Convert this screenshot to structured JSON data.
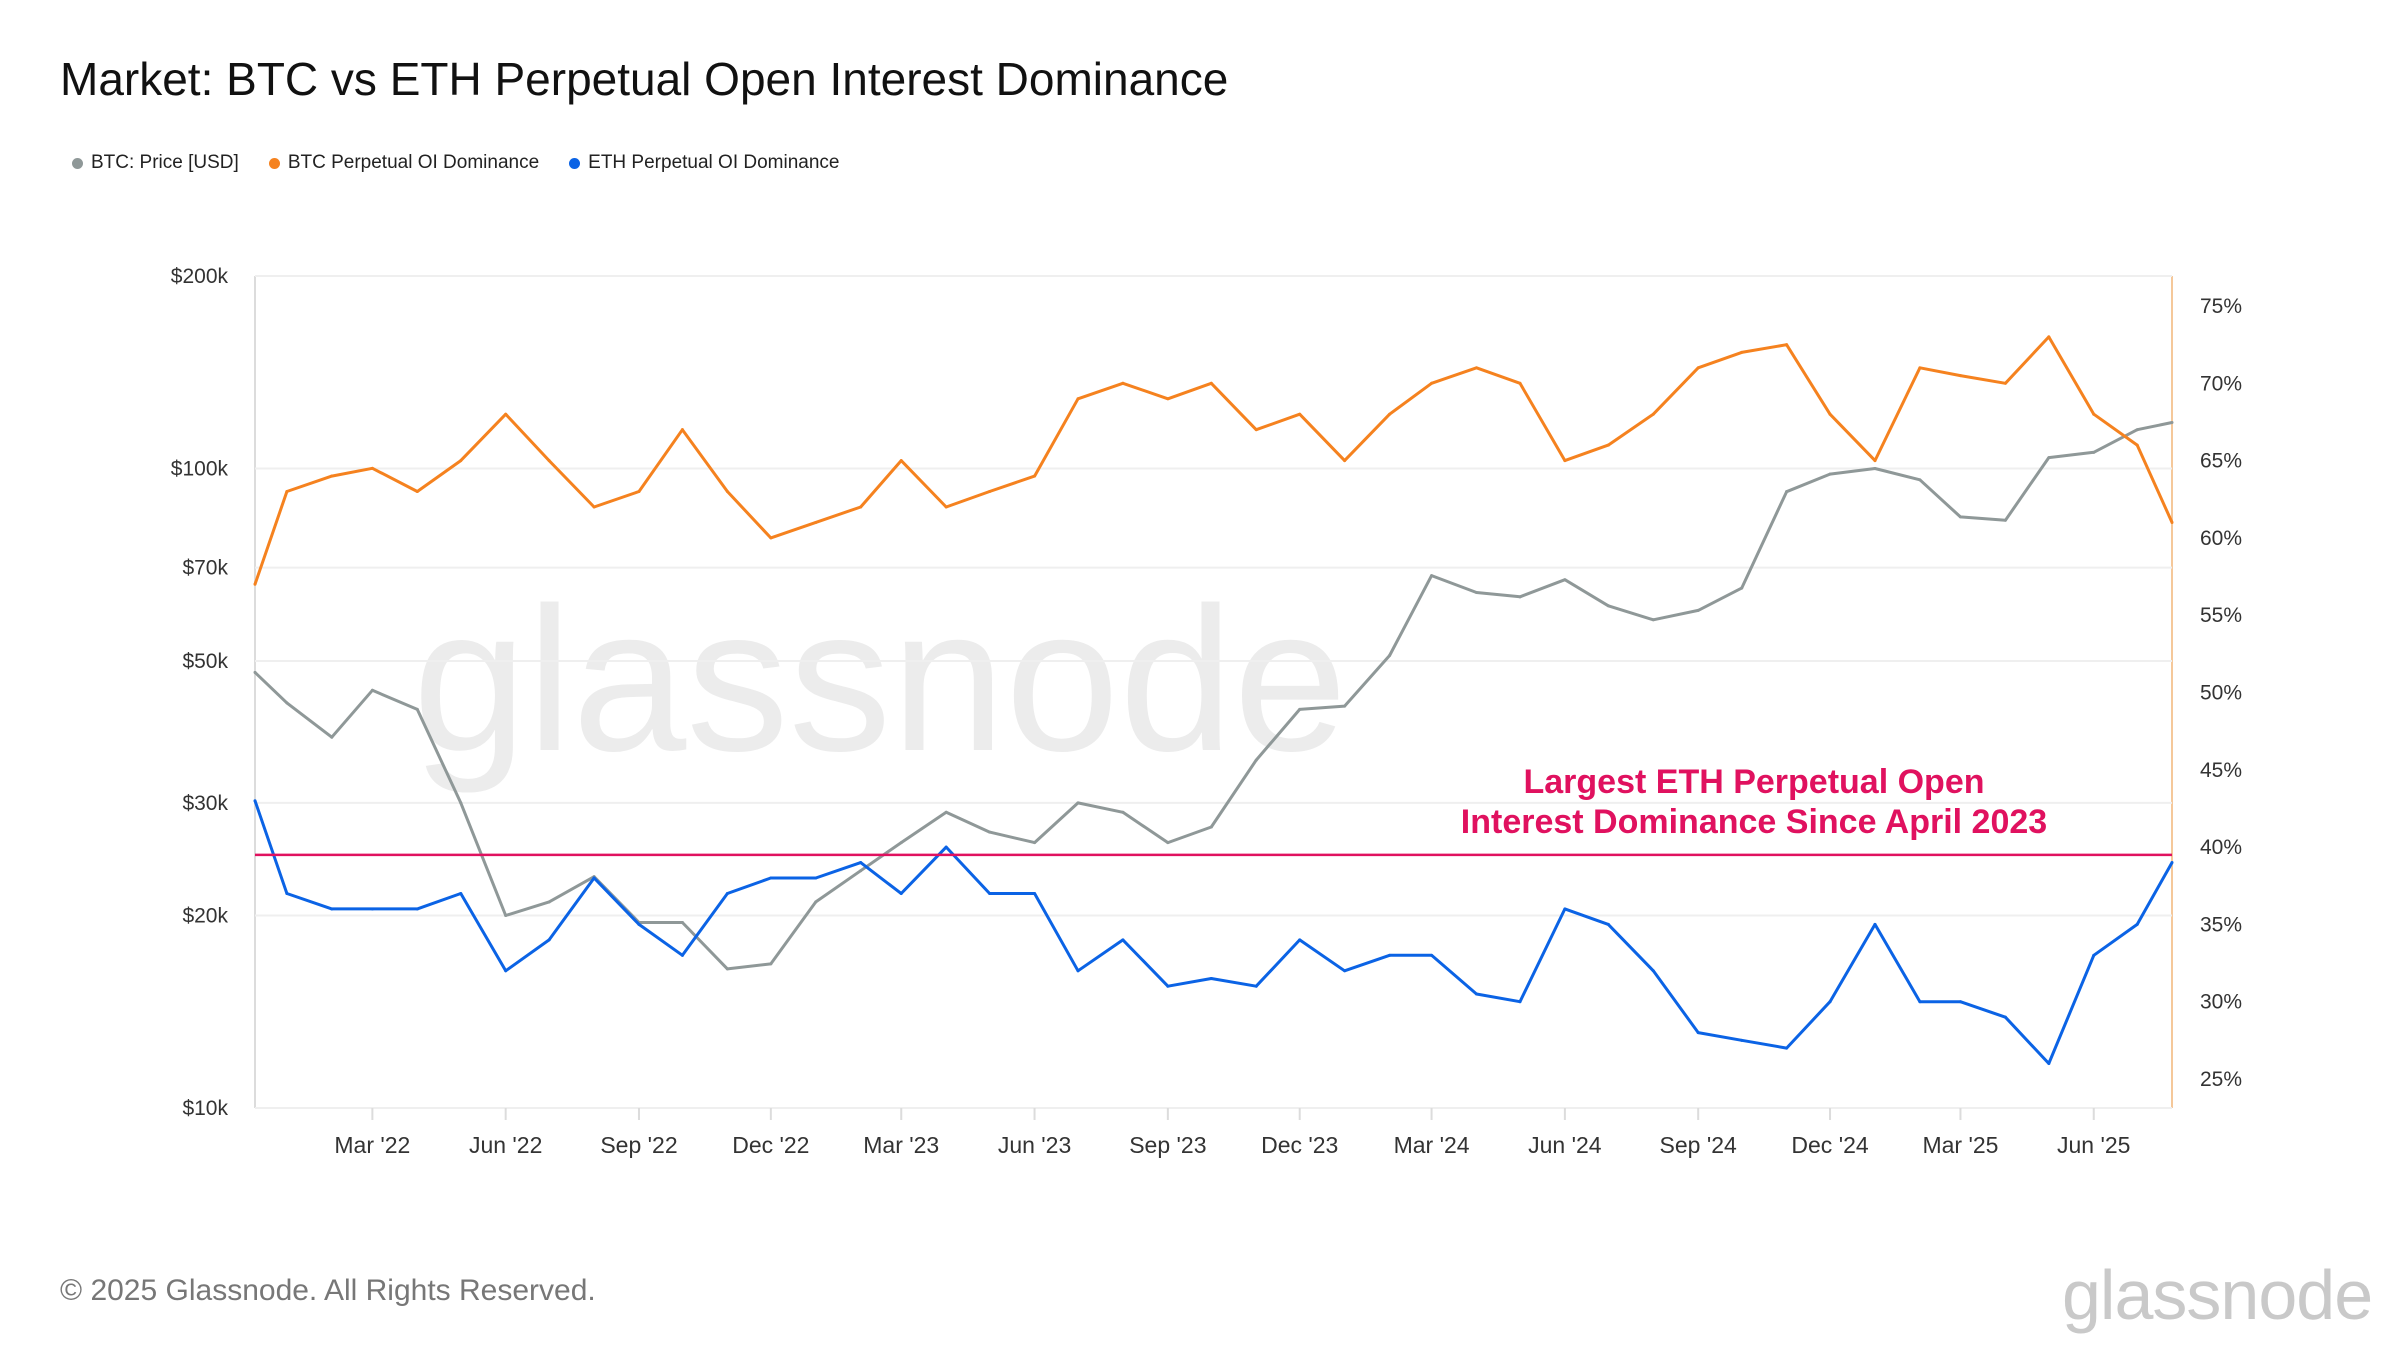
{
  "title": "Market: BTC vs ETH Perpetual Open Interest Dominance",
  "footer": "© 2025 Glassnode. All Rights Reserved.",
  "brand": "glassnode",
  "chart_data": {
    "type": "line",
    "title": "Market: BTC vs ETH Perpetual Open Interest Dominance",
    "legend_position": "top-left",
    "grid": true,
    "x_range": [
      "2021-12-10",
      "2025-07-25"
    ],
    "x_ticks": [
      {
        "date": "2022-03-01",
        "label": "Mar '22"
      },
      {
        "date": "2022-06-01",
        "label": "Jun '22"
      },
      {
        "date": "2022-09-01",
        "label": "Sep '22"
      },
      {
        "date": "2022-12-01",
        "label": "Dec '22"
      },
      {
        "date": "2023-03-01",
        "label": "Mar '23"
      },
      {
        "date": "2023-06-01",
        "label": "Jun '23"
      },
      {
        "date": "2023-09-01",
        "label": "Sep '23"
      },
      {
        "date": "2023-12-01",
        "label": "Dec '23"
      },
      {
        "date": "2024-03-01",
        "label": "Mar '24"
      },
      {
        "date": "2024-06-01",
        "label": "Jun '24"
      },
      {
        "date": "2024-09-01",
        "label": "Sep '24"
      },
      {
        "date": "2024-12-01",
        "label": "Dec '24"
      },
      {
        "date": "2025-03-01",
        "label": "Mar '25"
      },
      {
        "date": "2025-06-01",
        "label": "Jun '25"
      }
    ],
    "y_left": {
      "scale": "log",
      "range": [
        10000,
        200000
      ],
      "ticks": [
        {
          "value": 200000,
          "label": "$200k"
        },
        {
          "value": 100000,
          "label": "$100k"
        },
        {
          "value": 70000,
          "label": "$70k"
        },
        {
          "value": 50000,
          "label": "$50k"
        },
        {
          "value": 30000,
          "label": "$30k"
        },
        {
          "value": 20000,
          "label": "$20k"
        },
        {
          "value": 10000,
          "label": "$10k"
        }
      ]
    },
    "y_right": {
      "scale": "linear",
      "range": [
        23,
        77
      ],
      "ticks": [
        {
          "value": 75,
          "label": "75%"
        },
        {
          "value": 70,
          "label": "70%"
        },
        {
          "value": 65,
          "label": "65%"
        },
        {
          "value": 60,
          "label": "60%"
        },
        {
          "value": 55,
          "label": "55%"
        },
        {
          "value": 50,
          "label": "50%"
        },
        {
          "value": 45,
          "label": "45%"
        },
        {
          "value": 40,
          "label": "40%"
        },
        {
          "value": 35,
          "label": "35%"
        },
        {
          "value": 30,
          "label": "30%"
        },
        {
          "value": 25,
          "label": "25%"
        }
      ]
    },
    "dates": [
      "2021-12-10",
      "2022-01-01",
      "2022-02-01",
      "2022-03-01",
      "2022-04-01",
      "2022-05-01",
      "2022-06-01",
      "2022-07-01",
      "2022-08-01",
      "2022-09-01",
      "2022-10-01",
      "2022-11-01",
      "2022-12-01",
      "2023-01-01",
      "2023-02-01",
      "2023-03-01",
      "2023-04-01",
      "2023-05-01",
      "2023-06-01",
      "2023-07-01",
      "2023-08-01",
      "2023-09-01",
      "2023-10-01",
      "2023-11-01",
      "2023-12-01",
      "2024-01-01",
      "2024-02-01",
      "2024-03-01",
      "2024-04-01",
      "2024-05-01",
      "2024-06-01",
      "2024-07-01",
      "2024-08-01",
      "2024-09-01",
      "2024-10-01",
      "2024-11-01",
      "2024-12-01",
      "2025-01-01",
      "2025-02-01",
      "2025-03-01",
      "2025-04-01",
      "2025-05-01",
      "2025-06-01",
      "2025-07-01",
      "2025-07-25"
    ],
    "series": [
      {
        "name": "BTC: Price [USD]",
        "axis": "left",
        "color": "#8f9898",
        "values": [
          48000,
          43000,
          38000,
          45000,
          42000,
          30000,
          20000,
          21000,
          23000,
          19500,
          19500,
          16500,
          16800,
          21000,
          23500,
          26000,
          29000,
          27000,
          26000,
          30000,
          29000,
          26000,
          27500,
          35000,
          42000,
          42500,
          51000,
          68000,
          64000,
          63000,
          67000,
          61000,
          58000,
          60000,
          65000,
          92000,
          98000,
          100000,
          96000,
          84000,
          83000,
          104000,
          106000,
          115000,
          118000
        ]
      },
      {
        "name": "BTC Perpetual OI Dominance",
        "axis": "right",
        "color": "#f5821f",
        "values": [
          57,
          63,
          64,
          64.5,
          63,
          65,
          68,
          65,
          62,
          63,
          67,
          63,
          60,
          61,
          62,
          65,
          62,
          63,
          64,
          69,
          70,
          69,
          70,
          67,
          68,
          65,
          68,
          70,
          71,
          70,
          65,
          66,
          68,
          71,
          72,
          72.5,
          68,
          65,
          71,
          70.5,
          70,
          73,
          68,
          66,
          61
        ]
      },
      {
        "name": "ETH Perpetual OI Dominance",
        "axis": "right",
        "color": "#0b63e5",
        "values": [
          43,
          37,
          36,
          36,
          36,
          37,
          32,
          34,
          38,
          35,
          33,
          37,
          38,
          38,
          39,
          37,
          40,
          37,
          37,
          32,
          34,
          31,
          31.5,
          31,
          34,
          32,
          33,
          33,
          30.5,
          30,
          36,
          35,
          32,
          28,
          27.5,
          27,
          30,
          35,
          30,
          30,
          29,
          26,
          33,
          35,
          39
        ]
      }
    ],
    "reference_line": {
      "value": 39.5,
      "axis": "right",
      "color": "#e0115f"
    },
    "annotation": {
      "lines": [
        "Largest ETH Perpetual Open",
        "Interest Dominance Since April 2023"
      ],
      "color": "#e0115f"
    }
  }
}
